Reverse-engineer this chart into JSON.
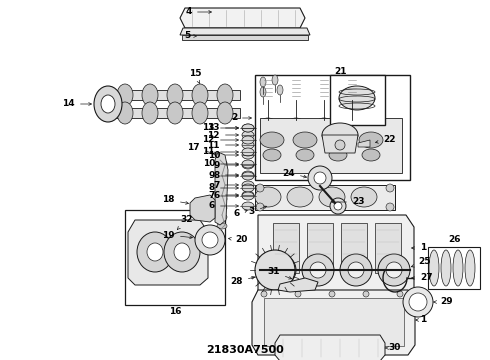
{
  "bg_color": "#ffffff",
  "fig_width": 4.9,
  "fig_height": 3.6,
  "dpi": 100,
  "title": "21830A7500",
  "line_color": "#1a1a1a",
  "label_fontsize": 6.5,
  "text_color": "#000000"
}
